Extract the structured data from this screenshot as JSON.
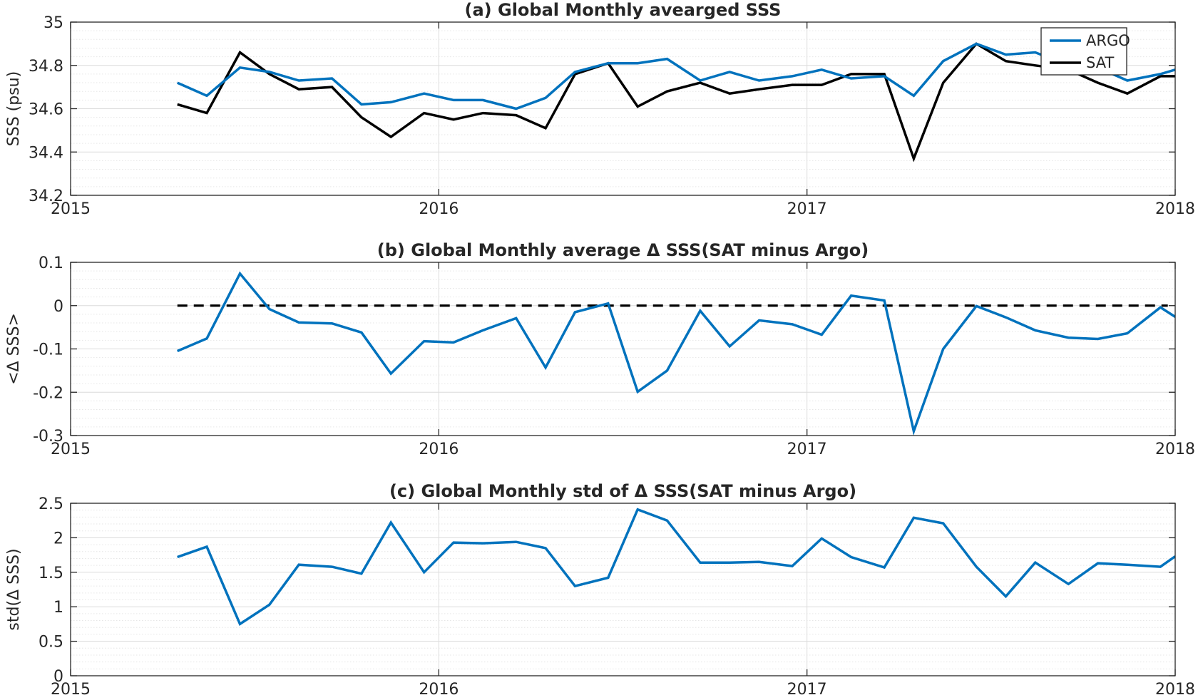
{
  "figure": {
    "colors": {
      "argo": "#0072BD",
      "sat": "#000000",
      "zero_line": "#000000",
      "axis": "#262626",
      "grid_major": "#dcdcdc",
      "grid_minor": "#e6e6e6"
    }
  },
  "chart_data": [
    {
      "type": "line",
      "title": "(a) Global Monthly avearged SSS",
      "ylabel": "SSS (psu)",
      "xlabel": "",
      "xlim": [
        2015.0,
        2018.0
      ],
      "ylim": [
        34.2,
        35.0
      ],
      "xticks": [
        2015,
        2016,
        2017,
        2018
      ],
      "xtick_labels": [
        "2015",
        "2016",
        "2017",
        "2018"
      ],
      "yticks": [
        34.2,
        34.4,
        34.6,
        34.8,
        35.0
      ],
      "ytick_labels": [
        "34.2",
        "34.4",
        "34.6",
        "34.8",
        "35"
      ],
      "grid": true,
      "minor_grid": true,
      "legend": {
        "placement": "top-right",
        "entries": [
          "ARGO",
          "SAT"
        ]
      },
      "x": [
        2015.29,
        2015.37,
        2015.46,
        2015.54,
        2015.62,
        2015.71,
        2015.79,
        2015.87,
        2015.96,
        2016.04,
        2016.12,
        2016.21,
        2016.29,
        2016.37,
        2016.46,
        2016.54,
        2016.62,
        2016.71,
        2016.79,
        2016.87,
        2016.96,
        2017.04,
        2017.12,
        2017.21,
        2017.29,
        2017.37,
        2017.46,
        2017.54,
        2017.62,
        2017.71,
        2017.79,
        2017.87,
        2017.96,
        2018.0
      ],
      "series": [
        {
          "name": "ARGO",
          "color": "#0072BD",
          "values": [
            34.72,
            34.66,
            34.79,
            34.77,
            34.73,
            34.74,
            34.62,
            34.63,
            34.67,
            34.64,
            34.64,
            34.6,
            34.65,
            34.77,
            34.81,
            34.81,
            34.83,
            34.73,
            34.77,
            34.73,
            34.75,
            34.78,
            34.74,
            34.75,
            34.66,
            34.82,
            34.9,
            34.85,
            34.86,
            34.8,
            34.79,
            34.73,
            34.76,
            34.78
          ]
        },
        {
          "name": "SAT",
          "color": "#000000",
          "values": [
            34.62,
            34.58,
            34.86,
            34.76,
            34.69,
            34.7,
            34.56,
            34.47,
            34.58,
            34.55,
            34.58,
            34.57,
            34.51,
            34.76,
            34.81,
            34.61,
            34.68,
            34.72,
            34.67,
            34.69,
            34.71,
            34.71,
            34.76,
            34.76,
            34.37,
            34.72,
            34.9,
            34.82,
            34.8,
            34.78,
            34.72,
            34.67,
            34.75,
            34.75
          ]
        }
      ]
    },
    {
      "type": "line",
      "title": "(b) Global Monthly average Δ SSS(SAT minus Argo)",
      "ylabel": "<Δ SSS>",
      "xlabel": "",
      "xlim": [
        2015.0,
        2018.0
      ],
      "ylim": [
        -0.3,
        0.1
      ],
      "xticks": [
        2015,
        2016,
        2017,
        2018
      ],
      "xtick_labels": [
        "2015",
        "2016",
        "2017",
        "2018"
      ],
      "yticks": [
        -0.3,
        -0.2,
        -0.1,
        0.0,
        0.1
      ],
      "ytick_labels": [
        "-0.3",
        "-0.2",
        "-0.1",
        "0",
        "0.1"
      ],
      "grid": true,
      "minor_grid": true,
      "reference_line": {
        "y": 0,
        "style": "dashed",
        "x_from": 2015.29,
        "x_to": 2017.98
      },
      "x": [
        2015.29,
        2015.37,
        2015.46,
        2015.54,
        2015.62,
        2015.71,
        2015.79,
        2015.87,
        2015.96,
        2016.04,
        2016.12,
        2016.21,
        2016.29,
        2016.37,
        2016.46,
        2016.54,
        2016.62,
        2016.71,
        2016.79,
        2016.87,
        2016.96,
        2017.04,
        2017.12,
        2017.21,
        2017.29,
        2017.37,
        2017.46,
        2017.54,
        2017.62,
        2017.71,
        2017.79,
        2017.87,
        2017.96,
        2018.0
      ],
      "series": [
        {
          "color": "#0072BD",
          "values": [
            -0.105,
            -0.076,
            0.074,
            -0.008,
            -0.039,
            -0.041,
            -0.062,
            -0.157,
            -0.082,
            -0.085,
            -0.057,
            -0.029,
            -0.143,
            -0.015,
            0.005,
            -0.199,
            -0.15,
            -0.012,
            -0.094,
            -0.034,
            -0.043,
            -0.067,
            0.023,
            0.012,
            -0.29,
            -0.1,
            -0.001,
            -0.027,
            -0.057,
            -0.074,
            -0.077,
            -0.064,
            -0.004,
            -0.026
          ]
        }
      ]
    },
    {
      "type": "line",
      "title": "(c) Global Monthly std of Δ SSS(SAT minus Argo)",
      "ylabel": "std(Δ SSS)",
      "xlabel": "",
      "xlim": [
        2015.0,
        2018.0
      ],
      "ylim": [
        0,
        2.5
      ],
      "xticks": [
        2015,
        2016,
        2017,
        2018
      ],
      "xtick_labels": [
        "2015",
        "2016",
        "2017",
        "2018"
      ],
      "yticks": [
        0,
        0.5,
        1,
        1.5,
        2,
        2.5
      ],
      "ytick_labels": [
        "0",
        "0.5",
        "1",
        "1.5",
        "2",
        "2.5"
      ],
      "grid": true,
      "minor_grid": true,
      "x": [
        2015.29,
        2015.37,
        2015.46,
        2015.54,
        2015.62,
        2015.71,
        2015.79,
        2015.87,
        2015.96,
        2016.04,
        2016.12,
        2016.21,
        2016.29,
        2016.37,
        2016.46,
        2016.54,
        2016.62,
        2016.71,
        2016.79,
        2016.87,
        2016.96,
        2017.04,
        2017.12,
        2017.21,
        2017.29,
        2017.37,
        2017.46,
        2017.54,
        2017.62,
        2017.71,
        2017.79,
        2017.87,
        2017.96,
        2018.0
      ],
      "series": [
        {
          "color": "#0072BD",
          "values": [
            1.72,
            1.87,
            0.75,
            1.03,
            1.61,
            1.58,
            1.48,
            2.22,
            1.5,
            1.93,
            1.92,
            1.94,
            1.85,
            1.3,
            1.42,
            2.41,
            2.25,
            1.64,
            1.64,
            1.65,
            1.59,
            1.99,
            1.72,
            1.57,
            2.29,
            2.21,
            1.58,
            1.15,
            1.64,
            1.33,
            1.63,
            1.61,
            1.58,
            1.73
          ]
        }
      ]
    }
  ]
}
